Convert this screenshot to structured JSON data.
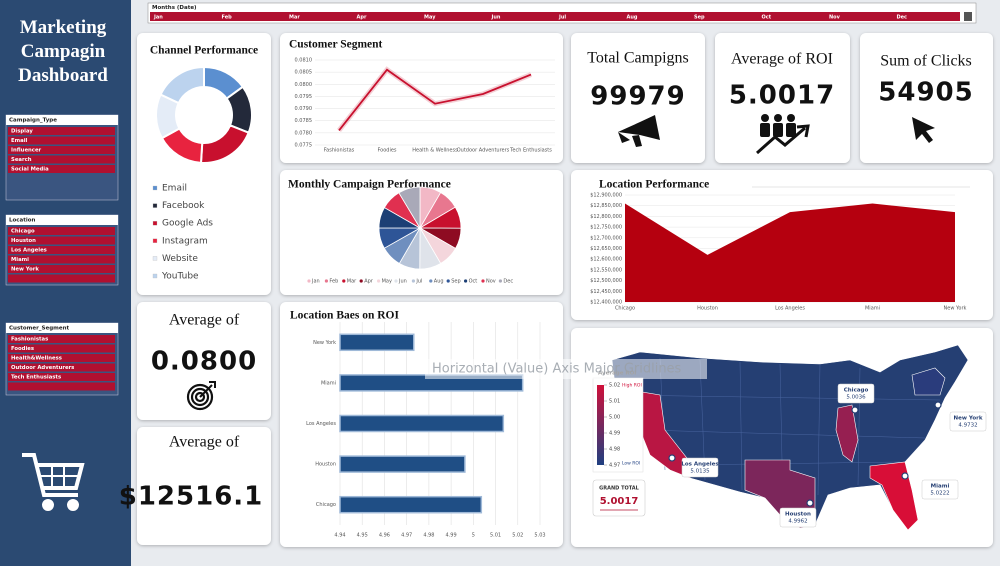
{
  "dashboard": {
    "title": "Marketing Campagin Dashboard",
    "slicers": [
      {
        "title": "Campaign_Type",
        "items": [
          "Display",
          "Email",
          "Influencer",
          "Search",
          "Social Media"
        ]
      },
      {
        "title": "Location",
        "items": [
          "Chicago",
          "Houston",
          "Los Angeles",
          "Miami",
          "New York"
        ]
      },
      {
        "title": "Customer_Segment",
        "items": [
          "Fashionistas",
          "Foodies",
          "Health&Wellness",
          "Outdoor Adventurers",
          "Tech Enthusiasts"
        ]
      }
    ],
    "timeline": {
      "title": "Months (Date)",
      "months": [
        "Jan",
        "Feb",
        "Mar",
        "Apr",
        "May",
        "Jun",
        "Jul",
        "Aug",
        "Sep",
        "Oct",
        "Nov",
        "Dec"
      ]
    },
    "cards": [
      {
        "title": "Total Campigns",
        "value": "99979"
      },
      {
        "title": "Average of ROI",
        "value": "5.0017"
      },
      {
        "title": "Sum of Clicks",
        "value": "54905"
      },
      {
        "title": "Average of",
        "value": "0.0800"
      },
      {
        "title": "Average of",
        "value": "$12516.1"
      }
    ],
    "tooltip": "Horizontal (Value) Axis Major Gridlines"
  },
  "chart_data": [
    {
      "type": "donut",
      "title": "Channel Performance",
      "categories": [
        "Email",
        "Facebook",
        "Google Ads",
        "Instagram",
        "Website",
        "YouTube"
      ],
      "values": [
        15,
        16,
        20,
        16,
        15,
        18
      ],
      "colors": [
        "#5b8fd0",
        "#23293a",
        "#c8102e",
        "#e8233f",
        "#e4ecf7",
        "#bcd3ee"
      ]
    },
    {
      "type": "line",
      "title": "Customer Segment",
      "categories": [
        "Fashionistas",
        "Foodies",
        "Health & Wellness",
        "Outdoor Adventurers",
        "Tech Enthusiasts"
      ],
      "values": [
        0.0781,
        0.0806,
        0.0792,
        0.0796,
        0.0804
      ],
      "color": "#c8102e",
      "ylim": [
        0.0775,
        0.081
      ],
      "yticks": [
        0.0775,
        {
          "value": 0.078,
          "label": "0.0780"
        },
        0.0785,
        {
          "value": 0.079,
          "label": "0.0790"
        },
        0.0795,
        {
          "value": 0.08,
          "label": "0.0800"
        },
        0.0805,
        {
          "value": 0.081,
          "label": "0.0810"
        }
      ]
    },
    {
      "type": "pie",
      "title": "Monthly Campaign Performance",
      "categories": [
        "Jan",
        "Feb",
        "Mar",
        "Apr",
        "May",
        "Jun",
        "Jul",
        "Aug",
        "Sep",
        "Oct",
        "Nov",
        "Dec"
      ],
      "values": [
        8.4,
        8.1,
        8.6,
        8.2,
        8.3,
        8.5,
        8.3,
        8.4,
        8.2,
        8.3,
        8.1,
        8.6
      ],
      "colors": [
        "#f2b8c6",
        "#e8778f",
        "#c8102e",
        "#8e0b22",
        "#f4d6dc",
        "#dfe3ea",
        "#b7c4d8",
        "#6f8fbf",
        "#2e5597",
        "#1c3f75",
        "#e03050",
        "#a9a9b8"
      ]
    },
    {
      "type": "area",
      "title": "Location Performance",
      "categories": [
        "Chicago",
        "Houston",
        "Los Angeles",
        "Miami",
        "New York"
      ],
      "values": [
        12860000,
        12620000,
        12820000,
        12860000,
        12820000
      ],
      "color": "#b5000f",
      "ylim": [
        12400000,
        12900000
      ],
      "yticks": [
        {
          "value": 12400000,
          "label": "$12,400,000"
        },
        {
          "value": 12450000,
          "label": "$12,450,000"
        },
        {
          "value": 12500000,
          "label": "$12,500,000"
        },
        {
          "value": 12550000,
          "label": "$12,550,000"
        },
        {
          "value": 12600000,
          "label": "$12,600,000"
        },
        {
          "value": 12650000,
          "label": "$12,650,000"
        },
        {
          "value": 12700000,
          "label": "$12,700,000"
        },
        {
          "value": 12750000,
          "label": "$12,750,000"
        },
        {
          "value": 12800000,
          "label": "$12,800,000"
        },
        {
          "value": 12850000,
          "label": "$12,850,000"
        },
        {
          "value": 12900000,
          "label": "$12,900,000"
        }
      ]
    },
    {
      "type": "hbar",
      "title": "Location Baes on ROI",
      "categories": [
        "New York",
        "Miami",
        "Los Angeles",
        "Houston",
        "Chicago"
      ],
      "values": [
        4.9732,
        5.0222,
        5.0135,
        4.9962,
        5.0036
      ],
      "color": "#1f4e85",
      "xlim": [
        4.94,
        5.03
      ],
      "xticks": [
        4.94,
        4.95,
        4.96,
        4.97,
        4.98,
        4.99,
        5,
        5.01,
        5.02,
        5.03
      ]
    },
    {
      "type": "map",
      "legend_title": "Average ROI",
      "legend_high": "High ROI",
      "legend_low": "Low ROI",
      "categories": [
        "Chicago",
        "New York",
        "Los Angeles",
        "Houston",
        "Miami"
      ],
      "values": [
        5.0036,
        4.9732,
        5.0135,
        4.9962,
        5.0222
      ],
      "colorlim": [
        4.97,
        5.02
      ],
      "colorticks": [
        5.02,
        5.01,
        {
          "value": 5,
          "label": "5.00"
        },
        4.99,
        4.98,
        4.97
      ],
      "low_color": "#1f3f80",
      "high_color": "#d0103a",
      "total_label": "GRAND TOTAL",
      "total": 5.0017
    }
  ]
}
